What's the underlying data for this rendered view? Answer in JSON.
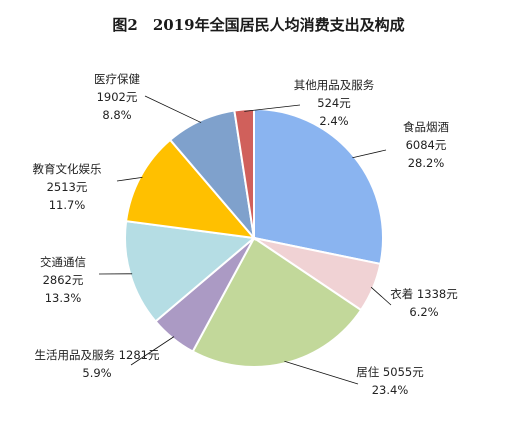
{
  "chart_data": {
    "type": "pie",
    "title": "图2　2019年全国居民人均消费支出及构成",
    "slices": [
      {
        "name": "食品烟酒",
        "value": 6084,
        "value_label": "6084元",
        "percent": "28.2%",
        "color": "#8ab4f0"
      },
      {
        "name": "衣着",
        "value": 1338,
        "value_label": "1338元",
        "percent": "6.2%",
        "color": "#f0d2d4"
      },
      {
        "name": "居住",
        "value": 5055,
        "value_label": "5055元",
        "percent": "23.4%",
        "color": "#c2d89a"
      },
      {
        "name": "生活用品及服务",
        "value": 1281,
        "value_label": "1281元",
        "percent": "5.9%",
        "color": "#ab9ac4"
      },
      {
        "name": "交通通信",
        "value": 2862,
        "value_label": "2862元",
        "percent": "13.3%",
        "color": "#b5dde4"
      },
      {
        "name": "教育文化娱乐",
        "value": 2513,
        "value_label": "2513元",
        "percent": "11.7%",
        "color": "#ffc000"
      },
      {
        "name": "医疗保健",
        "value": 1902,
        "value_label": "1902元",
        "percent": "8.8%",
        "color": "#7fa1cc"
      },
      {
        "name": "其他用品及服务",
        "value": 524,
        "value_label": "524元",
        "percent": "2.4%",
        "color": "#d0605b"
      }
    ]
  }
}
